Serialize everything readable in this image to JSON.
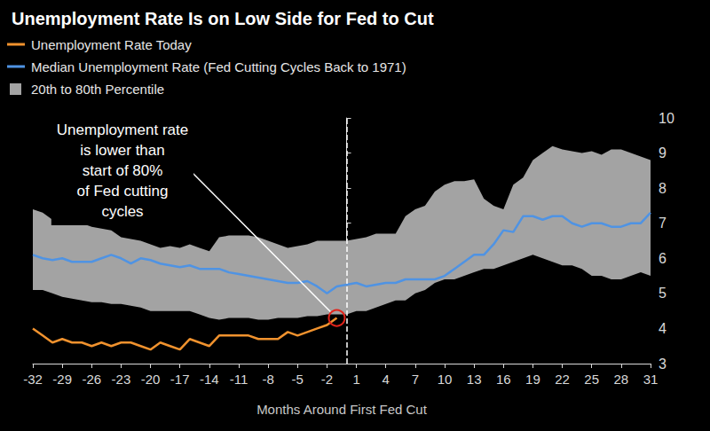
{
  "chart_data": {
    "type": "line",
    "title": "Unemployment Rate Is on Low Side for Fed to Cut",
    "x_label": "Months Around First Fed Cut",
    "x": [
      -32,
      -31,
      -30,
      -29,
      -28,
      -27,
      -26,
      -25,
      -24,
      -23,
      -22,
      -21,
      -20,
      -19,
      -18,
      -17,
      -16,
      -15,
      -14,
      -13,
      -12,
      -11,
      -10,
      -9,
      -8,
      -7,
      -6,
      -5,
      -4,
      -3,
      -2,
      -1,
      0,
      1,
      2,
      3,
      4,
      5,
      6,
      7,
      8,
      9,
      10,
      11,
      12,
      13,
      14,
      15,
      16,
      17,
      18,
      19,
      20,
      21,
      22,
      23,
      24,
      25,
      26,
      27,
      28,
      29,
      30,
      31
    ],
    "series": [
      {
        "name": "Unemployment Rate Today",
        "color": "#f0922e",
        "values": [
          4.0,
          3.8,
          3.6,
          3.7,
          3.6,
          3.6,
          3.5,
          3.6,
          3.5,
          3.6,
          3.6,
          3.5,
          3.4,
          3.6,
          3.5,
          3.4,
          3.7,
          3.6,
          3.5,
          3.8,
          3.8,
          3.8,
          3.8,
          3.7,
          3.7,
          3.7,
          3.9,
          3.8,
          3.9,
          4.0,
          4.1,
          4.3,
          null,
          null,
          null,
          null,
          null,
          null,
          null,
          null,
          null,
          null,
          null,
          null,
          null,
          null,
          null,
          null,
          null,
          null,
          null,
          null,
          null,
          null,
          null,
          null,
          null,
          null,
          null,
          null,
          null,
          null,
          null,
          null
        ]
      },
      {
        "name": "Median Unemployment Rate (Fed Cutting Cycles Back to 1971)",
        "color": "#4f93e3",
        "values": [
          6.1,
          6.0,
          5.95,
          6.0,
          5.9,
          5.9,
          5.9,
          6.0,
          6.1,
          6.0,
          5.85,
          6.0,
          5.95,
          5.85,
          5.8,
          5.75,
          5.8,
          5.7,
          5.7,
          5.7,
          5.6,
          5.55,
          5.5,
          5.45,
          5.4,
          5.35,
          5.3,
          5.3,
          5.35,
          5.2,
          5.0,
          5.2,
          5.25,
          5.3,
          5.2,
          5.25,
          5.3,
          5.3,
          5.4,
          5.4,
          5.4,
          5.4,
          5.5,
          5.7,
          5.9,
          6.1,
          6.1,
          6.4,
          6.8,
          6.75,
          7.2,
          7.2,
          7.1,
          7.2,
          7.2,
          7.0,
          6.9,
          7.0,
          7.0,
          6.9,
          6.9,
          7.0,
          7.0,
          7.3
        ]
      }
    ],
    "band": {
      "name": "20th to 80th Percentile",
      "color": "#a3a3a3",
      "lower": [
        5.1,
        5.1,
        5.0,
        4.9,
        4.85,
        4.8,
        4.75,
        4.75,
        4.7,
        4.7,
        4.65,
        4.6,
        4.5,
        4.5,
        4.5,
        4.5,
        4.5,
        4.4,
        4.3,
        4.25,
        4.3,
        4.3,
        4.3,
        4.25,
        4.25,
        4.3,
        4.3,
        4.3,
        4.35,
        4.35,
        4.4,
        4.4,
        4.4,
        4.5,
        4.5,
        4.6,
        4.7,
        4.8,
        4.8,
        5.0,
        5.1,
        5.3,
        5.4,
        5.4,
        5.5,
        5.6,
        5.7,
        5.7,
        5.8,
        5.9,
        6.0,
        6.1,
        6.0,
        5.9,
        5.8,
        5.8,
        5.7,
        5.5,
        5.5,
        5.4,
        5.4,
        5.5,
        5.6,
        5.5
      ],
      "upper": [
        7.4,
        7.3,
        7.1,
        7.1,
        6.95,
        7.0,
        6.9,
        6.85,
        6.8,
        6.6,
        6.55,
        6.5,
        6.4,
        6.3,
        6.35,
        6.3,
        6.4,
        6.3,
        6.2,
        6.6,
        6.65,
        6.65,
        6.65,
        6.6,
        6.5,
        6.4,
        6.3,
        6.35,
        6.4,
        6.5,
        6.5,
        6.5,
        6.5,
        6.55,
        6.6,
        6.7,
        6.7,
        6.7,
        7.2,
        7.4,
        7.5,
        7.9,
        8.1,
        8.2,
        8.2,
        8.25,
        7.7,
        7.5,
        7.4,
        8.1,
        8.3,
        8.8,
        9.0,
        9.2,
        9.1,
        9.05,
        9.0,
        9.05,
        8.95,
        9.1,
        9.1,
        9.0,
        8.9,
        8.8
      ]
    },
    "first_cut_x": 0,
    "annotation": [
      "Unemployment rate",
      "is lower than",
      "start of 80%",
      "of Fed cutting",
      "cycles"
    ],
    "xlim": [
      -32,
      31
    ],
    "xticks": [
      -32,
      -29,
      -26,
      -23,
      -20,
      -17,
      -14,
      -11,
      -8,
      -5,
      -2,
      1,
      4,
      7,
      10,
      13,
      16,
      19,
      22,
      25,
      28,
      31
    ],
    "ylim": [
      3,
      10
    ],
    "yticks": [
      3,
      4,
      5,
      6,
      7,
      8,
      9,
      10
    ],
    "grid": false,
    "legend": "upper left"
  }
}
